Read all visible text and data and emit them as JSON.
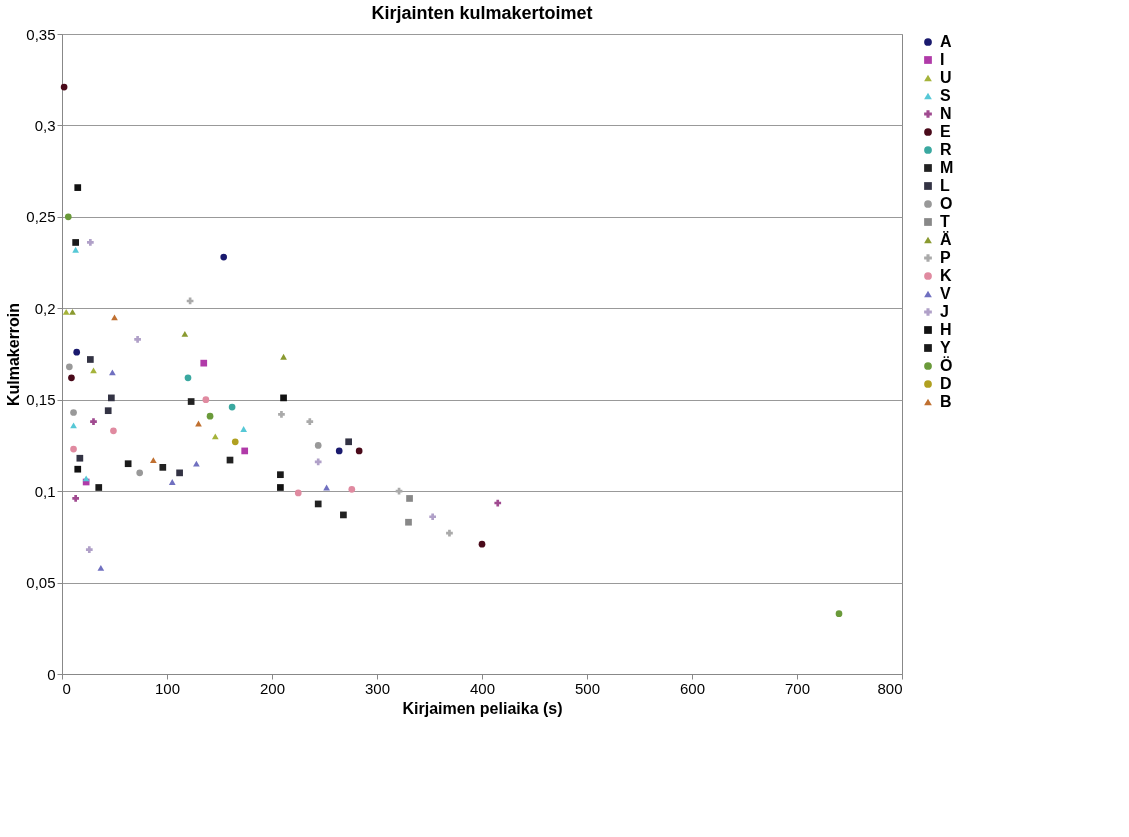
{
  "chart_data": {
    "type": "scatter",
    "title": "Kirjainten kulmakertoimet",
    "xlabel": "Kirjaimen peliaika (s)",
    "ylabel": "Kulmakerroin",
    "xlim": [
      0,
      800
    ],
    "xticks": [
      0,
      100,
      200,
      300,
      400,
      500,
      600,
      700,
      800
    ],
    "ylim": [
      0,
      0.35
    ],
    "yticks": [
      0,
      {
        "value": 0.05,
        "label": "0,05"
      },
      {
        "value": 0.1,
        "label": "0,1"
      },
      {
        "value": 0.15,
        "label": "0,15"
      },
      {
        "value": 0.2,
        "label": "0,2"
      },
      {
        "value": 0.25,
        "label": "0,25"
      },
      {
        "value": 0.3,
        "label": "0,3"
      },
      {
        "value": 0.35,
        "label": "0,35"
      }
    ],
    "grid": "y",
    "legend": "right",
    "series": [
      {
        "name": "A",
        "color": "#1a1a6e",
        "marker": "circle",
        "x": [
          154,
          14,
          264
        ],
        "values": [
          0.228,
          0.176,
          0.122
        ]
      },
      {
        "name": "I",
        "color": "#b03aa8",
        "marker": "square",
        "x": [
          135,
          174,
          23
        ],
        "values": [
          0.17,
          0.122,
          0.105
        ]
      },
      {
        "name": "U",
        "color": "#a5b33a",
        "marker": "triangle",
        "x": [
          4,
          30,
          146
        ],
        "values": [
          0.198,
          0.166,
          0.13
        ]
      },
      {
        "name": "S",
        "color": "#56c8d6",
        "marker": "triangle",
        "x": [
          13,
          173,
          11,
          23
        ],
        "values": [
          0.232,
          0.134,
          0.136,
          0.107
        ]
      },
      {
        "name": "N",
        "color": "#a04a90",
        "marker": "cross",
        "x": [
          30,
          13,
          415
        ],
        "values": [
          0.138,
          0.096,
          0.0935
        ]
      },
      {
        "name": "E",
        "color": "#4a0a1a",
        "marker": "circle",
        "x": [
          2,
          9,
          283,
          400
        ],
        "values": [
          0.321,
          0.162,
          0.122,
          0.071
        ]
      },
      {
        "name": "R",
        "color": "#3aa8a0",
        "marker": "circle",
        "x": [
          120,
          162
        ],
        "values": [
          0.162,
          0.146
        ]
      },
      {
        "name": "M",
        "color": "#222222",
        "marker": "square",
        "x": [
          160,
          123,
          96,
          244,
          268
        ],
        "values": [
          0.117,
          0.149,
          0.113,
          0.093,
          0.087
        ]
      },
      {
        "name": "L",
        "color": "#333344",
        "marker": "square",
        "x": [
          27,
          273,
          47,
          44,
          17,
          112
        ],
        "values": [
          0.172,
          0.127,
          0.151,
          0.144,
          0.118,
          0.11
        ]
      },
      {
        "name": "O",
        "color": "#999999",
        "marker": "circle",
        "x": [
          7,
          244,
          11,
          74
        ],
        "values": [
          0.168,
          0.125,
          0.143,
          0.11
        ]
      },
      {
        "name": "T",
        "color": "#888888",
        "marker": "square",
        "x": [
          331,
          330
        ],
        "values": [
          0.096,
          0.083
        ]
      },
      {
        "name": "Ä",
        "color": "#8a9a30",
        "marker": "triangle",
        "x": [
          10,
          117,
          211
        ],
        "values": [
          0.198,
          0.186,
          0.1735
        ]
      },
      {
        "name": "P",
        "color": "#aaaaaa",
        "marker": "cross",
        "x": [
          122,
          209,
          236,
          321,
          369
        ],
        "values": [
          0.204,
          0.142,
          0.138,
          0.1,
          0.077
        ]
      },
      {
        "name": "K",
        "color": "#e08aa0",
        "marker": "circle",
        "x": [
          225,
          276,
          137,
          49,
          11
        ],
        "values": [
          0.099,
          0.101,
          0.15,
          0.133,
          0.123
        ]
      },
      {
        "name": "V",
        "color": "#7070c0",
        "marker": "triangle",
        "x": [
          48,
          252,
          105,
          128,
          37
        ],
        "values": [
          0.165,
          0.102,
          0.105,
          0.115,
          0.058
        ]
      },
      {
        "name": "J",
        "color": "#b0a0c8",
        "marker": "cross",
        "x": [
          27,
          72,
          244,
          353,
          26
        ],
        "values": [
          0.236,
          0.183,
          0.116,
          0.086,
          0.068
        ]
      },
      {
        "name": "H",
        "color": "#111111",
        "marker": "square",
        "x": [
          15,
          211,
          208,
          15
        ],
        "values": [
          0.266,
          0.151,
          0.102,
          0.112
        ]
      },
      {
        "name": "Y",
        "color": "#1a1a1a",
        "marker": "square",
        "x": [
          13,
          208,
          63,
          35
        ],
        "values": [
          0.236,
          0.109,
          0.115,
          0.102
        ]
      },
      {
        "name": "Ö",
        "color": "#6a9a3a",
        "marker": "circle",
        "x": [
          6,
          141,
          740
        ],
        "values": [
          0.25,
          0.141,
          0.033
        ]
      },
      {
        "name": "D",
        "color": "#b0a020",
        "marker": "circle",
        "x": [
          165
        ],
        "values": [
          0.127
        ]
      },
      {
        "name": "B",
        "color": "#c07030",
        "marker": "triangle",
        "x": [
          50,
          130,
          87
        ],
        "values": [
          0.195,
          0.137,
          0.117
        ]
      }
    ]
  }
}
